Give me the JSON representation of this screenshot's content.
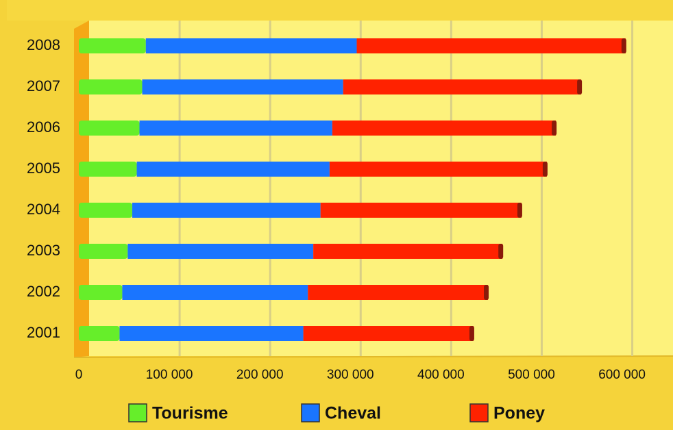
{
  "chart_data": {
    "type": "stacked-bar-horizontal",
    "categories": [
      "2008",
      "2007",
      "2006",
      "2005",
      "2004",
      "2003",
      "2002",
      "2001"
    ],
    "series": [
      {
        "name": "Tourisme",
        "color": "#66ee2a",
        "values": [
          74000,
          70000,
          67000,
          64000,
          59000,
          54000,
          48000,
          45000
        ]
      },
      {
        "name": "Cheval",
        "color": "#1a75ff",
        "values": [
          233000,
          222000,
          213000,
          213000,
          208000,
          205000,
          205000,
          203000
        ]
      },
      {
        "name": "Poney",
        "color": "#ff2200",
        "values": [
          297000,
          263000,
          247000,
          240000,
          222000,
          209000,
          199000,
          188000
        ]
      }
    ],
    "xlim": [
      0,
      645000
    ],
    "xticks": [
      0,
      {
        "value": 100000,
        "label": "100 000"
      },
      {
        "value": 200000,
        "label": "200 000"
      },
      {
        "value": 300000,
        "label": "300 000"
      },
      {
        "value": 400000,
        "label": "400 000"
      },
      {
        "value": 500000,
        "label": "500 000"
      },
      {
        "value": 600000,
        "label": "600 000"
      }
    ],
    "grid": true,
    "legend": "bottom"
  }
}
